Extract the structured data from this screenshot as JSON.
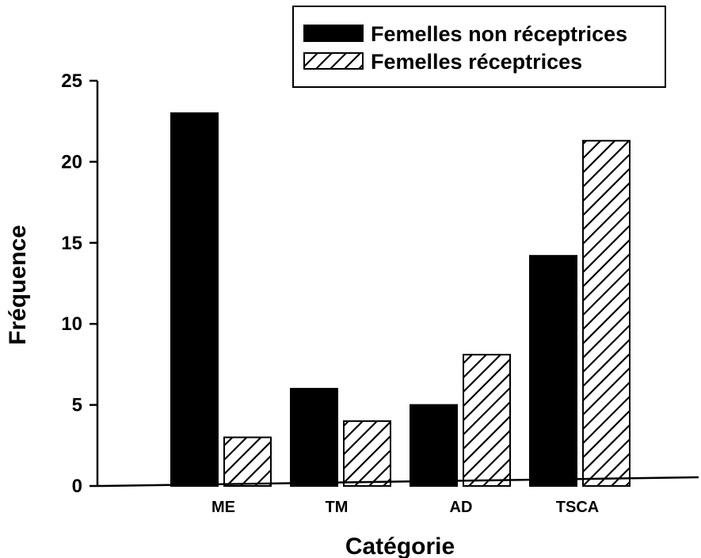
{
  "chart_data": {
    "type": "bar",
    "categories": [
      "ME",
      "TM",
      "AD",
      "TSCA"
    ],
    "series": [
      {
        "name": "Femelles non réceptrices",
        "values": [
          23,
          6,
          5,
          14.2
        ],
        "fill": "solid",
        "color": "#000000"
      },
      {
        "name": "Femelles réceptrices",
        "values": [
          3,
          4,
          8.1,
          21.3
        ],
        "fill": "hatched",
        "color": "#000000"
      }
    ],
    "title": "",
    "xlabel": "Catégorie",
    "ylabel": "Fréquence",
    "ylim": [
      0,
      25
    ],
    "yticks": [
      0,
      5,
      10,
      15,
      20,
      25
    ],
    "grid": false,
    "legend_position": "top-right"
  }
}
